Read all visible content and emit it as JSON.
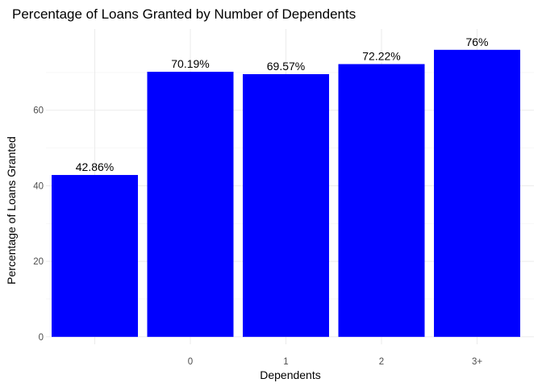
{
  "chart_data": {
    "type": "bar",
    "title": "Percentage of Loans Granted by Number of Dependents",
    "xlabel": "Dependents",
    "ylabel": "Percentage of Loans Granted",
    "categories": [
      "",
      "0",
      "1",
      "2",
      "3+"
    ],
    "values": [
      42.86,
      70.19,
      69.57,
      72.22,
      76
    ],
    "value_labels": [
      "42.86%",
      "70.19%",
      "69.57%",
      "72.22%",
      "76%"
    ],
    "ylim": [
      0,
      79.8
    ],
    "yticks": [
      0,
      20,
      40,
      60
    ],
    "ytick_labels": [
      "0",
      "20",
      "40",
      "60"
    ],
    "bar_color": "#0000ff",
    "grid": true,
    "legend": "none"
  }
}
